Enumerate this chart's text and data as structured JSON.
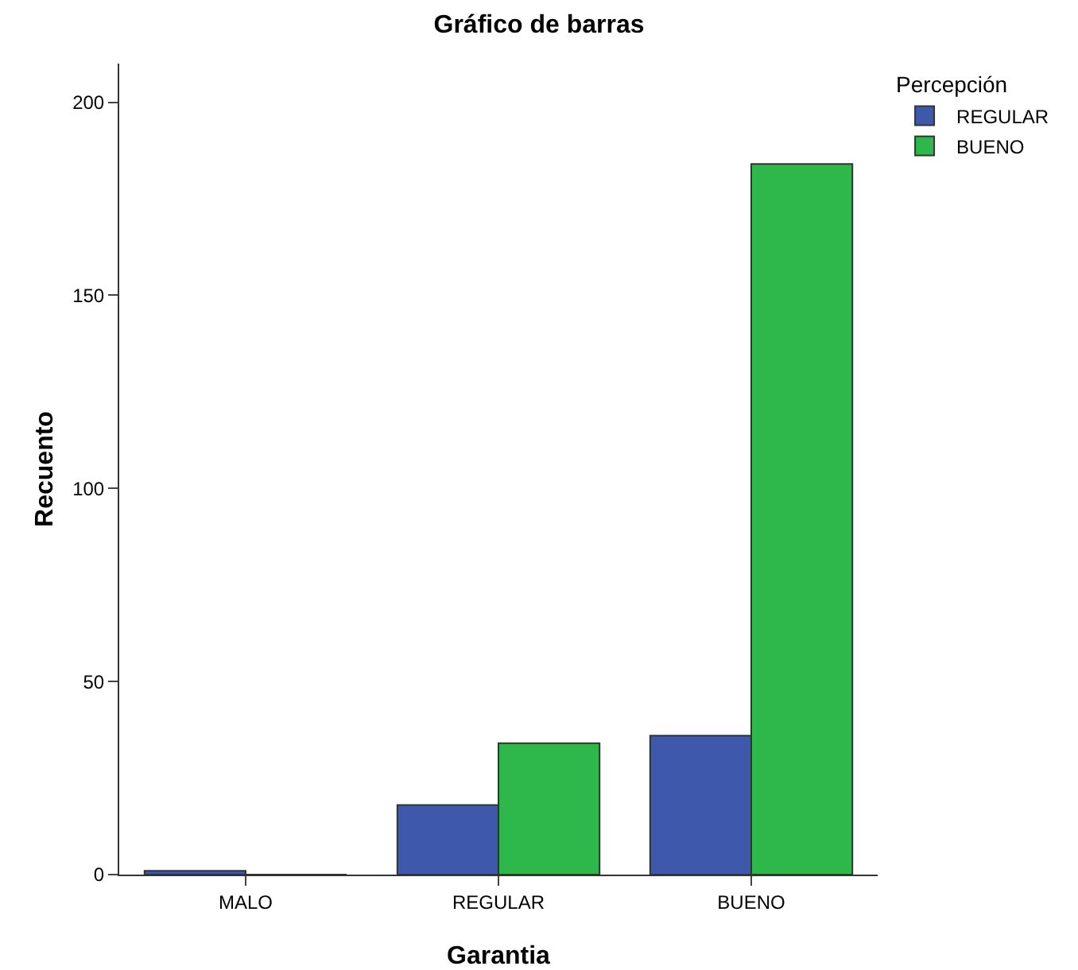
{
  "chart_data": {
    "type": "bar",
    "title": "Gráfico de barras",
    "xlabel": "Garantia",
    "ylabel": "Recuento",
    "legend_title": "Percepción",
    "categories": [
      "MALO",
      "REGULAR",
      "BUENO"
    ],
    "series": [
      {
        "name": "REGULAR",
        "color": "#3e58ac",
        "values": [
          1,
          18,
          36
        ]
      },
      {
        "name": "BUENO",
        "color": "#2eb84b",
        "values": [
          0,
          34,
          184
        ]
      }
    ],
    "ylim": [
      0,
      210
    ],
    "yticks": [
      0,
      50,
      100,
      150,
      200
    ],
    "grid": false,
    "legend": "top right"
  }
}
